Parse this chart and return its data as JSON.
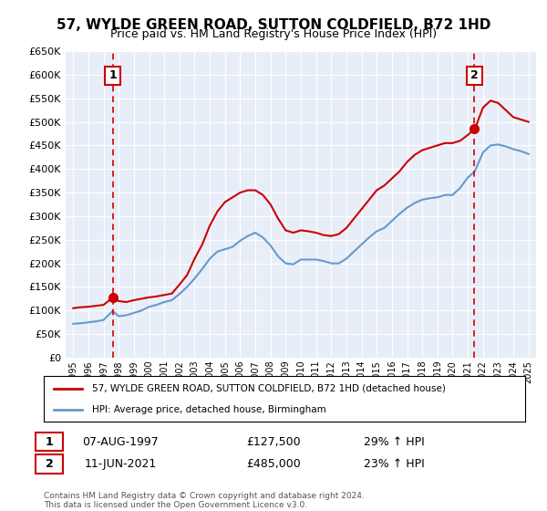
{
  "title1": "57, WYLDE GREEN ROAD, SUTTON COLDFIELD, B72 1HD",
  "title2": "Price paid vs. HM Land Registry's House Price Index (HPI)",
  "legend1": "57, WYLDE GREEN ROAD, SUTTON COLDFIELD, B72 1HD (detached house)",
  "legend2": "HPI: Average price, detached house, Birmingham",
  "sale1_label": "1",
  "sale1_date": "07-AUG-1997",
  "sale1_price": "£127,500",
  "sale1_hpi": "29% ↑ HPI",
  "sale1_year": 1997.6,
  "sale1_value": 127500,
  "sale2_label": "2",
  "sale2_date": "11-JUN-2021",
  "sale2_price": "£485,000",
  "sale2_hpi": "23% ↑ HPI",
  "sale2_year": 2021.44,
  "sale2_value": 485000,
  "footer": "Contains HM Land Registry data © Crown copyright and database right 2024.\nThis data is licensed under the Open Government Licence v3.0.",
  "bg_color": "#e8eef8",
  "plot_bg": "#e8eef8",
  "red_color": "#cc0000",
  "blue_color": "#6699cc",
  "ylim": [
    0,
    650000
  ],
  "yticks": [
    0,
    50000,
    100000,
    150000,
    200000,
    250000,
    300000,
    350000,
    400000,
    450000,
    500000,
    550000,
    600000,
    650000
  ],
  "red_line": {
    "years": [
      1995.0,
      1995.5,
      1996.0,
      1996.5,
      1997.0,
      1997.6,
      1998.0,
      1998.5,
      1999.0,
      1999.5,
      2000.0,
      2000.5,
      2001.0,
      2001.5,
      2002.0,
      2002.5,
      2003.0,
      2003.5,
      2004.0,
      2004.5,
      2005.0,
      2005.5,
      2006.0,
      2006.5,
      2007.0,
      2007.5,
      2008.0,
      2008.5,
      2009.0,
      2009.5,
      2010.0,
      2010.5,
      2011.0,
      2011.5,
      2012.0,
      2012.5,
      2013.0,
      2013.5,
      2014.0,
      2014.5,
      2015.0,
      2015.5,
      2016.0,
      2016.5,
      2017.0,
      2017.5,
      2018.0,
      2018.5,
      2019.0,
      2019.5,
      2020.0,
      2020.5,
      2021.0,
      2021.44,
      2021.5,
      2022.0,
      2022.5,
      2023.0,
      2023.5,
      2024.0,
      2024.5,
      2025.0
    ],
    "values": [
      105000,
      107000,
      108000,
      110000,
      112000,
      127500,
      120000,
      118000,
      122000,
      125000,
      128000,
      130000,
      133000,
      136000,
      155000,
      175000,
      210000,
      240000,
      280000,
      310000,
      330000,
      340000,
      350000,
      355000,
      355000,
      345000,
      325000,
      295000,
      270000,
      265000,
      270000,
      268000,
      265000,
      260000,
      258000,
      262000,
      275000,
      295000,
      315000,
      335000,
      355000,
      365000,
      380000,
      395000,
      415000,
      430000,
      440000,
      445000,
      450000,
      455000,
      455000,
      460000,
      472000,
      485000,
      488000,
      530000,
      545000,
      540000,
      525000,
      510000,
      505000,
      500000
    ]
  },
  "blue_line": {
    "years": [
      1995.0,
      1995.5,
      1996.0,
      1996.5,
      1997.0,
      1997.6,
      1998.0,
      1998.5,
      1999.0,
      1999.5,
      2000.0,
      2000.5,
      2001.0,
      2001.5,
      2002.0,
      2002.5,
      2003.0,
      2003.5,
      2004.0,
      2004.5,
      2005.0,
      2005.5,
      2006.0,
      2006.5,
      2007.0,
      2007.5,
      2008.0,
      2008.5,
      2009.0,
      2009.5,
      2010.0,
      2010.5,
      2011.0,
      2011.5,
      2012.0,
      2012.5,
      2013.0,
      2013.5,
      2014.0,
      2014.5,
      2015.0,
      2015.5,
      2016.0,
      2016.5,
      2017.0,
      2017.5,
      2018.0,
      2018.5,
      2019.0,
      2019.5,
      2020.0,
      2020.5,
      2021.0,
      2021.44,
      2021.5,
      2022.0,
      2022.5,
      2023.0,
      2023.5,
      2024.0,
      2024.5,
      2025.0
    ],
    "values": [
      72000,
      73000,
      75000,
      77000,
      80000,
      99000,
      88000,
      90000,
      95000,
      100000,
      108000,
      112000,
      118000,
      122000,
      135000,
      150000,
      168000,
      188000,
      210000,
      225000,
      230000,
      235000,
      248000,
      258000,
      265000,
      255000,
      238000,
      215000,
      200000,
      198000,
      208000,
      208000,
      208000,
      205000,
      200000,
      200000,
      210000,
      225000,
      240000,
      255000,
      268000,
      275000,
      290000,
      305000,
      318000,
      328000,
      335000,
      338000,
      340000,
      345000,
      345000,
      360000,
      382000,
      394000,
      398000,
      435000,
      450000,
      452000,
      448000,
      442000,
      438000,
      432000
    ]
  }
}
